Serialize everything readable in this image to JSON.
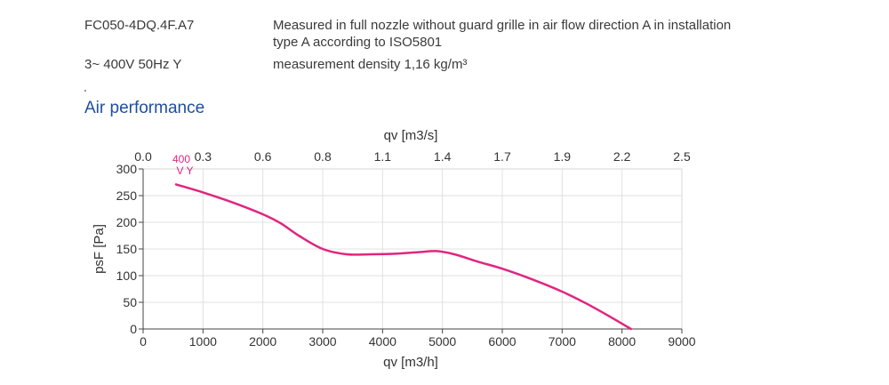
{
  "header": {
    "model": "FC050-4DQ.4F.A7",
    "supply": "3~ 400V 50Hz Y",
    "measurement_line1": "Measured in full nozzle without guard grille in air flow direction A in installation",
    "measurement_line2": "type A according to ISO5801",
    "density": "measurement density 1,16 kg/m³"
  },
  "section_title": "Air performance",
  "chart_data": {
    "type": "line",
    "title": "",
    "xlabel": "qv [m3/h]",
    "x2label": "qv [m3/s]",
    "ylabel": "psF [Pa]",
    "xlim": [
      0,
      9000
    ],
    "ylim": [
      0,
      300
    ],
    "x_ticks": [
      "0",
      "1000",
      "2000",
      "3000",
      "4000",
      "5000",
      "6000",
      "7000",
      "8000",
      "9000"
    ],
    "x2_ticks": [
      "0.0",
      "0.3",
      "0.6",
      "0.8",
      "1.1",
      "1.4",
      "1.7",
      "1.9",
      "2.2",
      "2.5"
    ],
    "y_ticks": [
      "0",
      "50",
      "100",
      "150",
      "200",
      "250",
      "300"
    ],
    "grid": true,
    "series": [
      {
        "label_line1": "400",
        "label_line2": "V Y",
        "color": "#e0267f",
        "x": [
          550,
          1000,
          1500,
          2000,
          2300,
          2600,
          3000,
          3400,
          3800,
          4200,
          4600,
          4900,
          5200,
          5600,
          6000,
          6500,
          7000,
          7400,
          7800,
          8150
        ],
        "y": [
          271,
          256,
          237,
          215,
          198,
          175,
          150,
          140,
          140,
          141,
          144,
          146,
          140,
          126,
          113,
          93,
          70,
          48,
          23,
          0
        ]
      }
    ]
  }
}
